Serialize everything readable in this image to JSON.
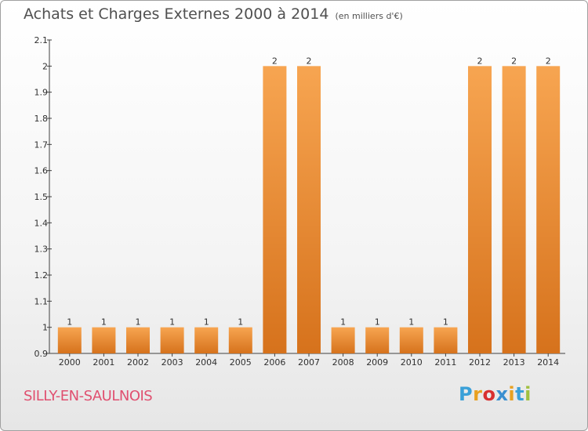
{
  "title": "Achats et Charges Externes 2000 à 2014",
  "unit_label": "(en milliers d'€)",
  "commune": "SILLY-EN-SAULNOIS",
  "logo_text": "Proxiti",
  "colors": {
    "bar_light": "#f7a551",
    "bar_dark": "#d6721c",
    "axis": "#404040",
    "commune": "#e05070"
  },
  "chart_data": {
    "type": "bar",
    "categories": [
      "2000",
      "2001",
      "2002",
      "2003",
      "2004",
      "2005",
      "2006",
      "2007",
      "2008",
      "2009",
      "2010",
      "2011",
      "2012",
      "2013",
      "2014"
    ],
    "values": [
      1,
      1,
      1,
      1,
      1,
      1,
      2,
      2,
      1,
      1,
      1,
      1,
      2,
      2,
      2
    ],
    "data_labels": [
      "1",
      "1",
      "1",
      "1",
      "1",
      "1",
      "2",
      "2",
      "1",
      "1",
      "1",
      "1",
      "2",
      "2",
      "2"
    ],
    "ylim": [
      0.9,
      2.1
    ],
    "yticks": [
      0.9,
      1,
      1.1,
      1.2,
      1.3,
      1.4,
      1.5,
      1.6,
      1.7,
      1.8,
      1.9,
      2,
      2.1
    ],
    "ytick_labels": [
      "0.9",
      "1",
      "1.1",
      "1.2",
      "1.3",
      "1.4",
      "1.5",
      "1.6",
      "1.7",
      "1.8",
      "1.9",
      "2",
      "2.1"
    ],
    "grid": false,
    "legend": "none"
  }
}
